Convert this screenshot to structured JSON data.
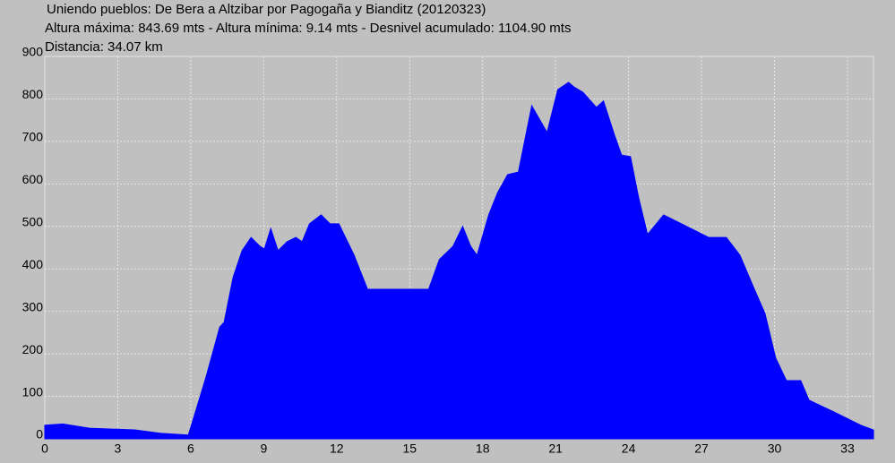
{
  "chart_data": {
    "type": "area",
    "title": "Uniendo pueblos: De Bera a Altzibar por Pagogaña y Bianditz (20120323)",
    "subtitle": "Altura máxima: 843.69 mts - Altura mínima: 9.14 mts - Desnivel acumulado: 1104.90 mts",
    "annotation": "Distancia: 34.07 km",
    "color": "#0000ff",
    "x": [
      0,
      0.74,
      1.84,
      3.69,
      4.79,
      5.9,
      6.08,
      6.64,
      7.19,
      7.37,
      7.74,
      8.11,
      8.48,
      8.85,
      9.03,
      9.29,
      9.59,
      9.96,
      10.32,
      10.58,
      10.88,
      11.36,
      11.73,
      12.09,
      12.72,
      13.27,
      15.78,
      16.22,
      16.78,
      17.18,
      17.51,
      17.77,
      18.25,
      18.62,
      19.03,
      19.47,
      20.02,
      20.65,
      21.09,
      21.53,
      21.76,
      22.12,
      22.68,
      22.97,
      23.41,
      23.71,
      24.08,
      24.41,
      24.78,
      25.44,
      26.18,
      27.29,
      28.02,
      28.58,
      29.13,
      29.61,
      30.05,
      30.49,
      31.08,
      31.42,
      32.45,
      33.55,
      34.07
    ],
    "values": [
      32,
      35,
      25,
      21,
      13,
      9,
      42,
      148,
      263,
      274,
      380,
      443,
      474,
      453,
      447,
      495,
      443,
      464,
      474,
      464,
      506,
      527,
      506,
      506,
      432,
      352,
      352,
      422,
      453,
      500,
      453,
      432,
      527,
      580,
      622,
      628,
      784,
      721,
      822,
      839,
      828,
      816,
      780,
      795,
      717,
      668,
      664,
      569,
      481,
      527,
      506,
      474,
      474,
      432,
      358,
      295,
      190,
      137,
      137,
      91,
      63,
      32,
      21
    ],
    "xlim": [
      0,
      34.07
    ],
    "xticks": [
      0,
      3,
      6,
      9,
      12,
      15,
      18,
      21,
      24,
      27,
      30,
      33
    ],
    "ylim": [
      0,
      900
    ],
    "yticks": [
      0,
      100,
      200,
      300,
      400,
      500,
      600,
      700,
      800,
      900
    ],
    "grid": true
  }
}
